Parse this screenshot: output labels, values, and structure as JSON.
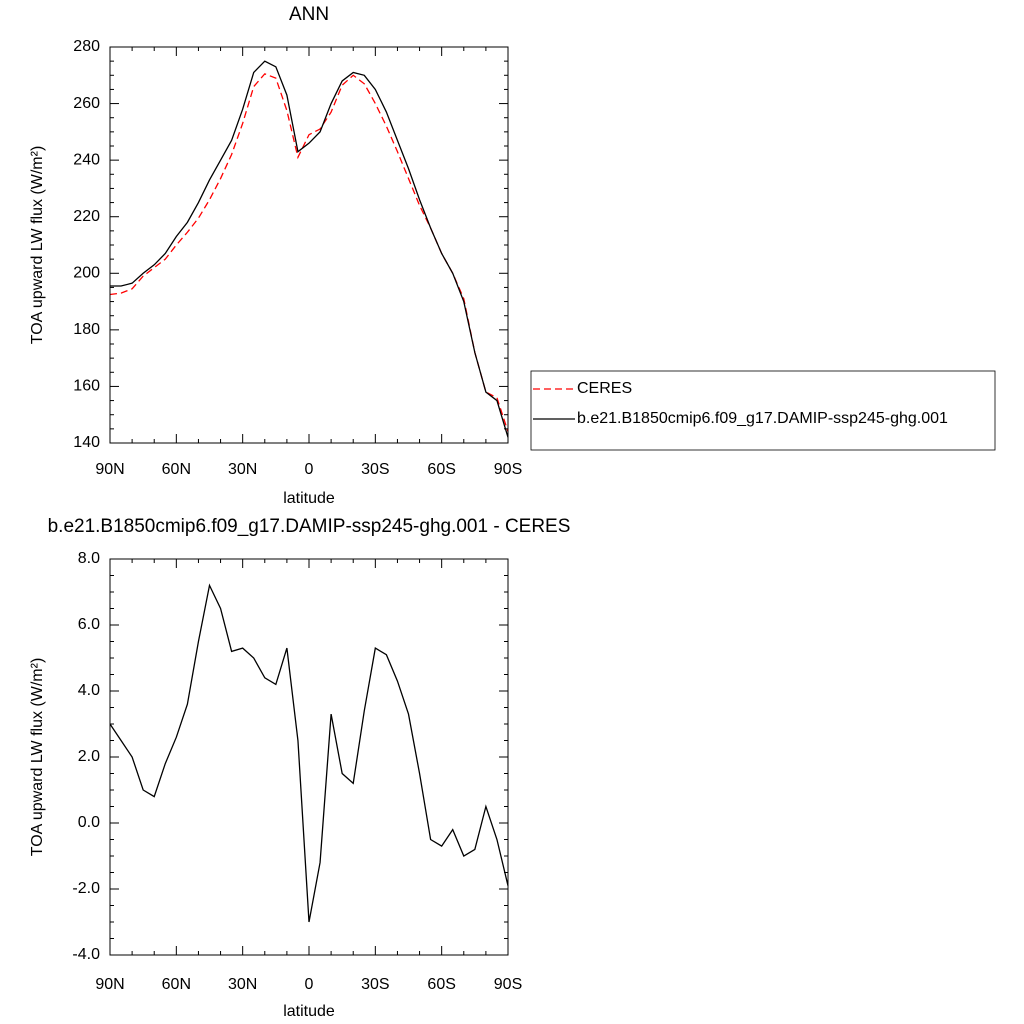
{
  "chart_data": [
    {
      "type": "line",
      "title": "ANN",
      "xlabel": "latitude",
      "ylabel": "TOA upward LW flux (W/m²)",
      "x": [
        90,
        85,
        80,
        75,
        70,
        65,
        60,
        55,
        50,
        45,
        40,
        35,
        30,
        25,
        20,
        15,
        10,
        5,
        0,
        -5,
        -10,
        -15,
        -20,
        -25,
        -30,
        -35,
        -40,
        -45,
        -50,
        -55,
        -60,
        -65,
        -70,
        -75,
        -80,
        -85,
        -90
      ],
      "series": [
        {
          "name": "CERES",
          "color": "#ff0000",
          "linestyle": "dashed",
          "values": [
            192.5,
            193,
            194.5,
            199,
            202,
            205,
            210,
            214.5,
            219.5,
            226,
            233.5,
            242,
            253,
            266,
            270.5,
            269,
            257.5,
            241,
            249,
            251,
            257,
            266.5,
            270,
            267,
            260,
            252,
            243,
            233.5,
            224,
            216,
            207,
            200,
            191,
            172,
            158,
            156,
            144
          ]
        },
        {
          "name": "b.e21.B1850cmip6.f09_g17.DAMIP-ssp245-ghg.001",
          "color": "#000000",
          "linestyle": "solid",
          "values": [
            195.5,
            195.5,
            196.5,
            200,
            203,
            207,
            213,
            218,
            225,
            233,
            240,
            247,
            258,
            271,
            275,
            273,
            263,
            243,
            246,
            250,
            260,
            268,
            271,
            270,
            265,
            257,
            247,
            237,
            226,
            216,
            207,
            200,
            190,
            172,
            158,
            155,
            142
          ]
        }
      ],
      "xlim": [
        90,
        -90
      ],
      "xticks": [
        {
          "value": 90,
          "label": "90N"
        },
        {
          "value": 60,
          "label": "60N"
        },
        {
          "value": 30,
          "label": "30N"
        },
        0,
        {
          "value": -30,
          "label": "30S"
        },
        {
          "value": -60,
          "label": "60S"
        },
        {
          "value": -90,
          "label": "90S"
        }
      ],
      "ylim": [
        140,
        280
      ],
      "yticks": [
        140,
        160,
        180,
        200,
        220,
        240,
        260,
        280
      ],
      "legend": "right"
    },
    {
      "type": "line",
      "title": "b.e21.B1850cmip6.f09_g17.DAMIP-ssp245-ghg.001 - CERES",
      "xlabel": "latitude",
      "ylabel": "TOA upward LW flux (W/m²)",
      "x": [
        90,
        85,
        80,
        75,
        70,
        65,
        60,
        55,
        50,
        45,
        40,
        35,
        30,
        25,
        20,
        15,
        10,
        5,
        0,
        -5,
        -10,
        -15,
        -20,
        -25,
        -30,
        -35,
        -40,
        -45,
        -50,
        -55,
        -60,
        -65,
        -70,
        -75,
        -80,
        -85,
        -90
      ],
      "color": "#000000",
      "values": [
        3.0,
        2.5,
        2.0,
        1.0,
        0.8,
        1.8,
        2.6,
        3.6,
        5.5,
        7.2,
        6.5,
        5.2,
        5.3,
        5.0,
        4.4,
        4.2,
        5.3,
        2.5,
        -3.0,
        -1.2,
        3.3,
        1.5,
        1.2,
        3.4,
        5.3,
        5.1,
        4.3,
        3.3,
        1.5,
        -0.5,
        -0.7,
        -0.2,
        -1.0,
        -0.8,
        0.5,
        -0.5,
        -1.9
      ],
      "xlim": [
        90,
        -90
      ],
      "xticks": [
        {
          "value": 90,
          "label": "90N"
        },
        {
          "value": 60,
          "label": "60N"
        },
        {
          "value": 30,
          "label": "30N"
        },
        0,
        {
          "value": -30,
          "label": "30S"
        },
        {
          "value": -60,
          "label": "60S"
        },
        {
          "value": -90,
          "label": "90S"
        }
      ],
      "ylim": [
        -4,
        8
      ],
      "yticks": [
        {
          "value": -4,
          "label": "-4.0"
        },
        {
          "value": -2,
          "label": "-2.0"
        },
        {
          "value": 0,
          "label": "0.0"
        },
        {
          "value": 2,
          "label": "2.0"
        },
        {
          "value": 4,
          "label": "4.0"
        },
        {
          "value": 6,
          "label": "6.0"
        },
        {
          "value": 8,
          "label": "8.0"
        }
      ]
    }
  ]
}
